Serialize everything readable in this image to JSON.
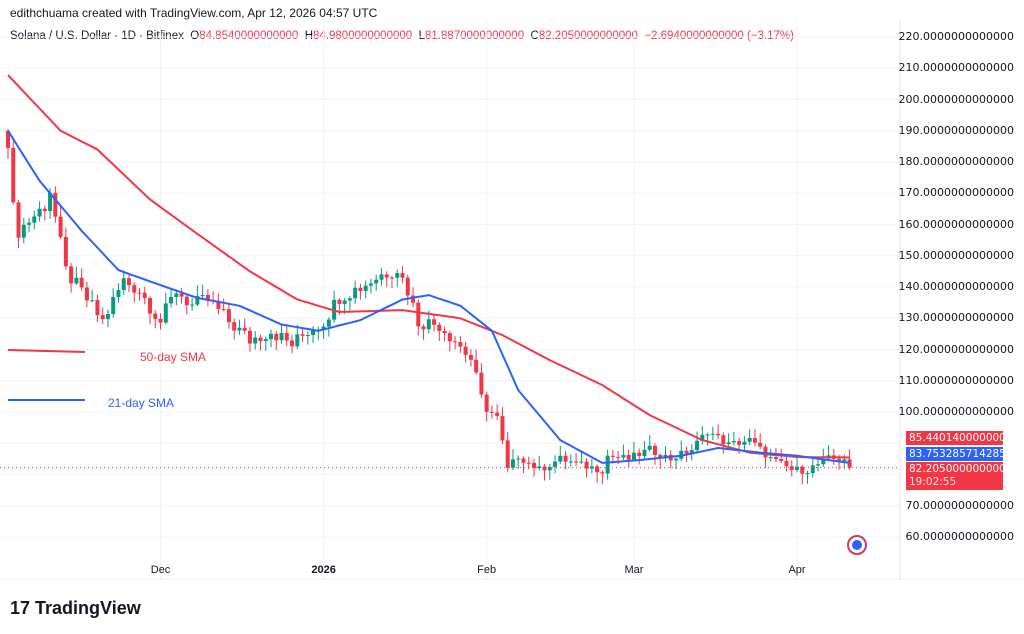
{
  "credit": "edithchuama created with TradingView.com, Apr 12, 2026 04:57 UTC",
  "legend": {
    "symbol": "Solana / U.S. Dollar · 1D · Bitfinex",
    "o_label": "O",
    "o": "84.8540000000000",
    "h_label": "H",
    "h": "84.9800000000000",
    "l_label": "L",
    "l": "81.8870000000000",
    "c_label": "C",
    "c": "82.2050000000000",
    "change": "−2.6940000000000 (−3.17%)"
  },
  "price_tags": {
    "sma50": "85.4401400000000",
    "sma21": "83.7532857142859",
    "last": "82.2050000000000",
    "countdown": "19:02:55"
  },
  "annotations": {
    "sma50": "50-day SMA",
    "sma21": "21-day SMA"
  },
  "logo": "TradingView",
  "colors": {
    "up": "#089981",
    "down": "#f23645",
    "sma50": "#f23645",
    "sma21": "#2962ff"
  },
  "chart_data": {
    "type": "candlestick",
    "title": "Solana / U.S. Dollar · 1D · Bitfinex",
    "x_unit": "days since Nov 2, 2025",
    "ylim": [
      55,
      222
    ],
    "yticks": [
      "220.0000000000000",
      "210.0000000000000",
      "200.0000000000000",
      "190.0000000000000",
      "180.0000000000000",
      "170.0000000000000",
      "160.0000000000000",
      "150.0000000000000",
      "140.0000000000000",
      "130.0000000000000",
      "120.0000000000000",
      "110.0000000000000",
      "100.0000000000000",
      "70.0000000000000",
      "60.0000000000000"
    ],
    "ytick_values": [
      220,
      210,
      200,
      190,
      180,
      170,
      160,
      150,
      140,
      130,
      120,
      110,
      100,
      70,
      60
    ],
    "xticks": [
      {
        "label": "Dec",
        "day": 29
      },
      {
        "label": "2026",
        "day": 60
      },
      {
        "label": "Feb",
        "day": 91
      },
      {
        "label": "Mar",
        "day": 119
      },
      {
        "label": "Apr",
        "day": 150
      }
    ],
    "close_keyframes": [
      [
        0,
        187
      ],
      [
        1,
        165
      ],
      [
        2,
        158
      ],
      [
        7,
        166
      ],
      [
        8,
        171
      ],
      [
        11,
        145
      ],
      [
        15,
        136
      ],
      [
        18,
        129
      ],
      [
        22,
        142
      ],
      [
        25,
        139
      ],
      [
        29,
        129
      ],
      [
        32,
        139
      ],
      [
        35,
        134
      ],
      [
        38,
        136
      ],
      [
        42,
        129
      ],
      [
        46,
        123
      ],
      [
        50,
        126
      ],
      [
        54,
        121.5
      ],
      [
        57,
        126
      ],
      [
        60,
        129
      ],
      [
        63,
        137
      ],
      [
        67,
        140
      ],
      [
        71,
        144
      ],
      [
        74,
        146
      ],
      [
        76,
        139
      ],
      [
        78,
        129
      ],
      [
        82,
        128
      ],
      [
        85,
        123
      ],
      [
        88,
        117
      ],
      [
        90,
        104
      ],
      [
        93,
        97.5
      ],
      [
        95,
        81.5
      ],
      [
        97,
        86
      ],
      [
        101,
        81.5
      ],
      [
        105,
        85
      ],
      [
        109,
        83
      ],
      [
        113,
        81.5
      ],
      [
        114,
        86
      ],
      [
        118,
        85
      ],
      [
        122,
        88
      ],
      [
        126,
        85
      ],
      [
        130,
        88
      ],
      [
        133,
        94
      ],
      [
        137,
        89.5
      ],
      [
        141,
        91
      ],
      [
        145,
        85
      ],
      [
        149,
        81.5
      ],
      [
        152,
        81.5
      ],
      [
        156,
        85
      ],
      [
        159,
        84.85
      ],
      [
        160,
        82.2
      ]
    ],
    "sma50_keyframes": [
      [
        0,
        207.8
      ],
      [
        10,
        190
      ],
      [
        17,
        184
      ],
      [
        27,
        168
      ],
      [
        36,
        157
      ],
      [
        46,
        145
      ],
      [
        55,
        136
      ],
      [
        63,
        132
      ],
      [
        75,
        132.6
      ],
      [
        86,
        130
      ],
      [
        94,
        124.6
      ],
      [
        103,
        116.6
      ],
      [
        113,
        108.6
      ],
      [
        122,
        99
      ],
      [
        132,
        91
      ],
      [
        141,
        87
      ],
      [
        150,
        85.6
      ],
      [
        160,
        85.44
      ]
    ],
    "sma21_keyframes": [
      [
        0,
        190
      ],
      [
        6,
        174
      ],
      [
        14,
        158
      ],
      [
        21,
        145.4
      ],
      [
        29,
        140.6
      ],
      [
        36,
        136.5
      ],
      [
        44,
        134
      ],
      [
        52,
        128
      ],
      [
        59,
        126
      ],
      [
        67,
        129.4
      ],
      [
        75,
        136
      ],
      [
        80,
        137.4
      ],
      [
        86,
        134
      ],
      [
        92,
        126
      ],
      [
        97,
        107
      ],
      [
        105,
        91
      ],
      [
        113,
        83.7
      ],
      [
        120,
        84.6
      ],
      [
        128,
        86
      ],
      [
        135,
        88.5
      ],
      [
        143,
        87
      ],
      [
        150,
        86
      ],
      [
        156,
        84.6
      ],
      [
        160,
        83.75
      ]
    ]
  }
}
